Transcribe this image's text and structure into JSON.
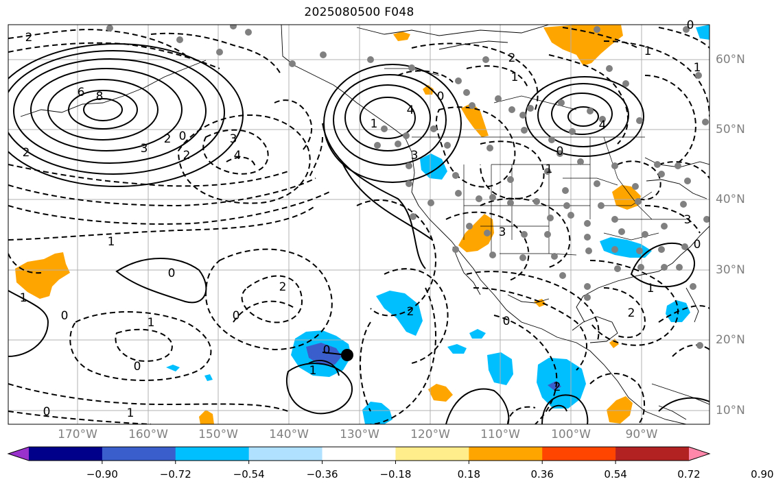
{
  "title": "2025080500 F048",
  "map": {
    "lon_labels": [
      "170°W",
      "160°W",
      "150°W",
      "140°W",
      "130°W",
      "120°W",
      "110°W",
      "100°W",
      "90°W"
    ],
    "lat_labels": [
      "60°N",
      "50°N",
      "40°N",
      "30°N",
      "20°N",
      "10°N"
    ],
    "contour_labels": [
      {
        "text": "2"
      },
      {
        "text": "6"
      },
      {
        "text": "8"
      },
      {
        "text": "3"
      },
      {
        "text": "2"
      },
      {
        "text": "0"
      },
      {
        "text": "2"
      },
      {
        "text": "2"
      },
      {
        "text": "3"
      },
      {
        "text": "4"
      },
      {
        "text": "1"
      },
      {
        "text": "0"
      },
      {
        "text": "1"
      },
      {
        "text": "0"
      },
      {
        "text": "2"
      },
      {
        "text": "0"
      },
      {
        "text": "1"
      },
      {
        "text": "0"
      },
      {
        "text": "1"
      },
      {
        "text": "4"
      },
      {
        "text": "3"
      },
      {
        "text": "2"
      },
      {
        "text": "1"
      },
      {
        "text": "0"
      },
      {
        "text": "1"
      },
      {
        "text": "3"
      },
      {
        "text": "4"
      },
      {
        "text": "0"
      },
      {
        "text": "1"
      },
      {
        "text": "3"
      },
      {
        "text": "0"
      },
      {
        "text": "2"
      },
      {
        "text": "1"
      },
      {
        "text": "0"
      },
      {
        "text": "2"
      },
      {
        "text": "1"
      },
      {
        "text": "0"
      },
      {
        "text": "2"
      },
      {
        "text": "0"
      },
      {
        "text": "1"
      },
      {
        "text": "0"
      },
      {
        "text": "1"
      }
    ],
    "colors": {
      "station_dot": "#808080",
      "grid": "#b0b0b0",
      "label_gray": "#7f7f7f"
    }
  },
  "colorbar": {
    "colors": [
      "#9932cc",
      "#00008b",
      "#3a5fcd",
      "#00bfff",
      "#b0e2ff",
      "#ffffff",
      "#ffec8b",
      "#ffa500",
      "#ff4500",
      "#b22222",
      "#ff88aa"
    ],
    "tick_labels": [
      "−0.90",
      "−0.72",
      "−0.54",
      "−0.36",
      "−0.18",
      "0.18",
      "0.36",
      "0.54",
      "0.72",
      "0.90"
    ]
  }
}
